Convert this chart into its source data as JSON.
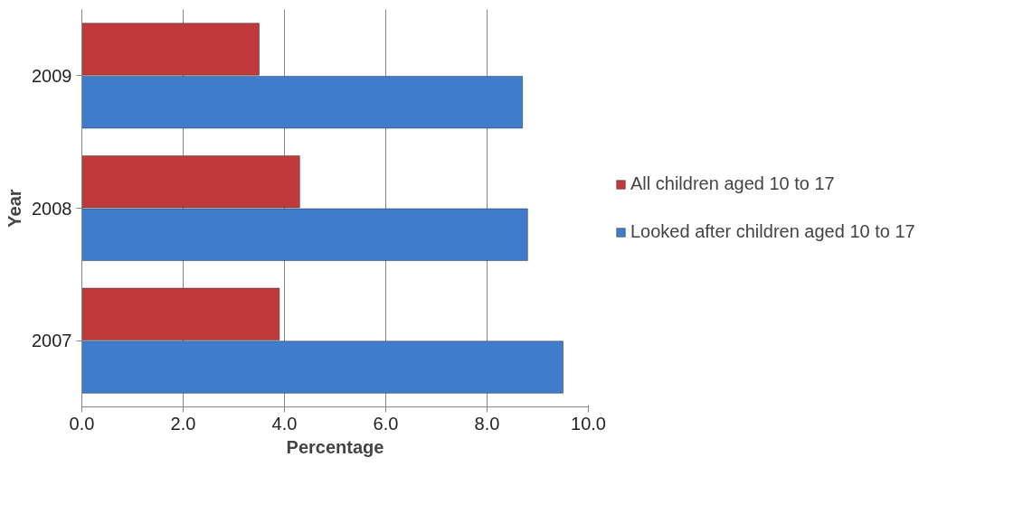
{
  "chart_data": {
    "type": "bar",
    "orientation": "horizontal",
    "xlabel": "Percentage",
    "ylabel": "Year",
    "categories": [
      "2009",
      "2008",
      "2007"
    ],
    "series": [
      {
        "name": "All children aged 10 to 17",
        "color": "#c0393b",
        "values": [
          3.5,
          4.3,
          3.9
        ]
      },
      {
        "name": "Looked after children aged 10 to 17",
        "color": "#3f7ccc",
        "values": [
          8.7,
          8.8,
          9.5
        ]
      }
    ],
    "xlim": [
      0,
      10
    ],
    "xticks": [
      {
        "value": 0,
        "label": "0.0"
      },
      {
        "value": 2,
        "label": "2.0"
      },
      {
        "value": 4,
        "label": "4.0"
      },
      {
        "value": 6,
        "label": "6.0"
      },
      {
        "value": 8,
        "label": "8.0"
      },
      {
        "value": 10,
        "label": "10.0"
      }
    ],
    "grid": "x",
    "legend": "right"
  }
}
